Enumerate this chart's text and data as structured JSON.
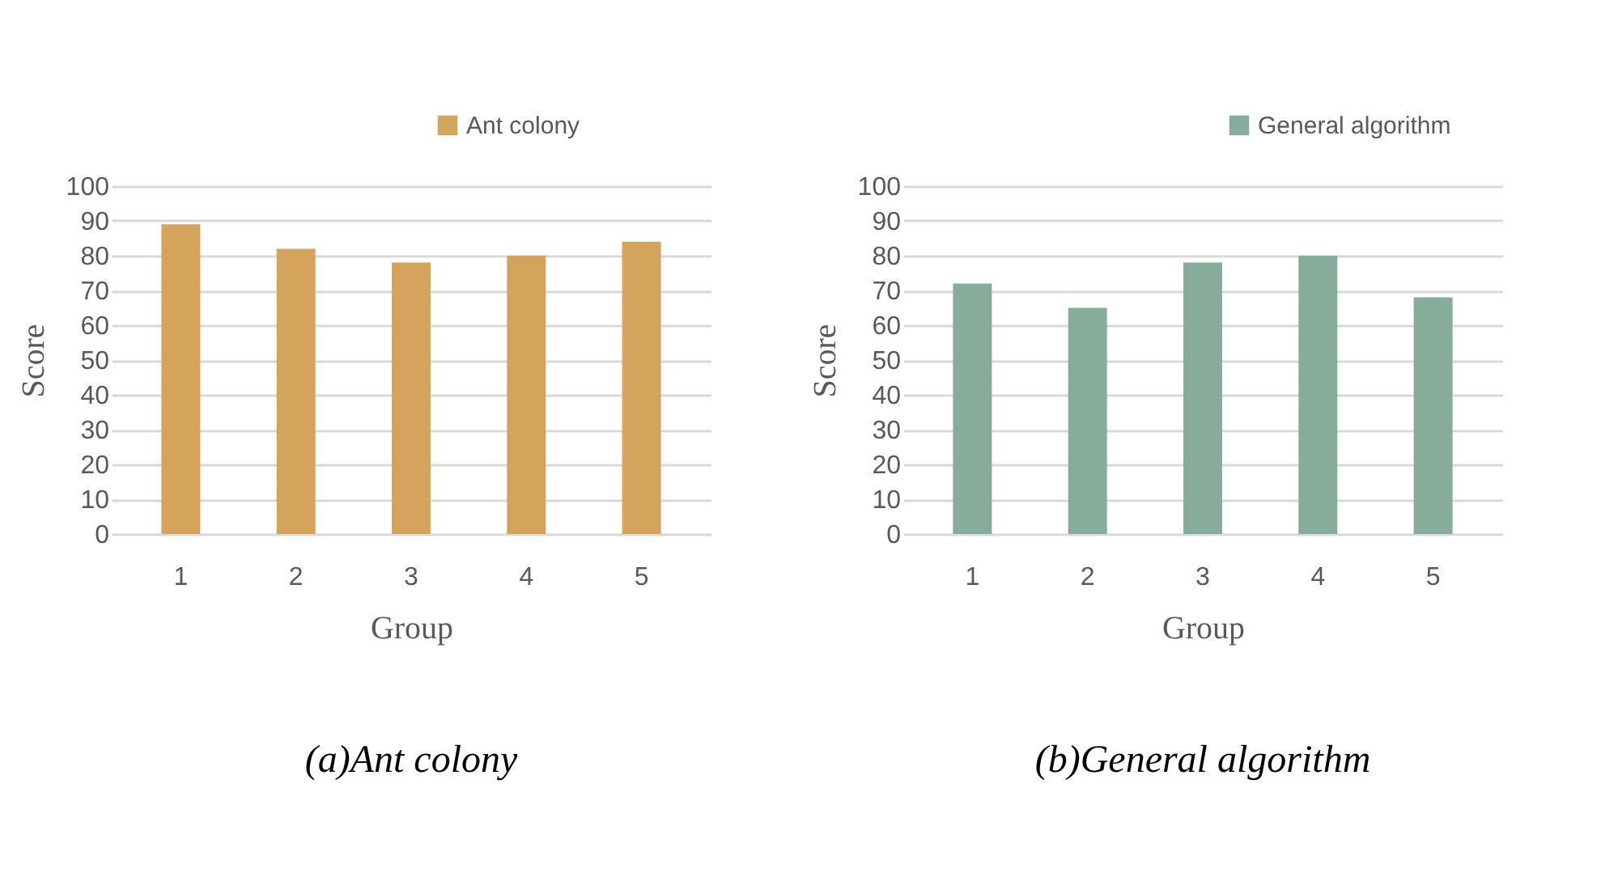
{
  "chart_data": [
    {
      "type": "bar",
      "title": "(a)Ant colony",
      "xlabel": "Group",
      "ylabel": "Score",
      "categories": [
        "1",
        "2",
        "3",
        "4",
        "5"
      ],
      "series": [
        {
          "name": "Ant colony",
          "color": "#d4a35c",
          "values": [
            89,
            82,
            78,
            80,
            84
          ]
        }
      ],
      "ylim": [
        0,
        100
      ],
      "yticks": [
        0,
        10,
        20,
        30,
        40,
        50,
        60,
        70,
        80,
        90,
        100
      ],
      "grid": "y",
      "legend": "top right"
    },
    {
      "type": "bar",
      "title": "(b)General algorithm",
      "xlabel": "Group",
      "ylabel": "Score",
      "categories": [
        "1",
        "2",
        "3",
        "4",
        "5"
      ],
      "series": [
        {
          "name": "General algorithm",
          "color": "#86ad9c",
          "values": [
            72,
            65,
            78,
            80,
            68
          ]
        }
      ],
      "ylim": [
        0,
        100
      ],
      "yticks": [
        0,
        10,
        20,
        30,
        40,
        50,
        60,
        70,
        80,
        90,
        100
      ],
      "grid": "y",
      "legend": "top right"
    }
  ]
}
